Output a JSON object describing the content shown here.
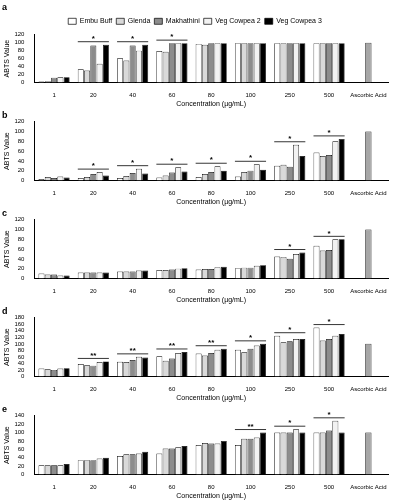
{
  "chart_data": [
    {
      "type": "bar",
      "title": "a",
      "x_label": "Concentration (µg/mL)",
      "y_label": "ABTS Value",
      "categories": [
        "1",
        "20",
        "40",
        "60",
        "80",
        "100",
        "250",
        "500",
        "Ascorbic Acid"
      ],
      "series": [
        {
          "name": "Embu Buff",
          "color": "#ffffff",
          "values": [
            2,
            33,
            61,
            79,
            97,
            99,
            99,
            99,
            null
          ]
        },
        {
          "name": "Glenda",
          "color": "#d9d9d9",
          "values": [
            3,
            30,
            55,
            77,
            95,
            99,
            99,
            99,
            null
          ]
        },
        {
          "name": "Makhathini",
          "color": "#8c8c8c",
          "values": [
            12,
            93,
            93,
            99,
            99,
            99,
            99,
            99,
            null
          ]
        },
        {
          "name": "Veg Cowpea 2",
          "color": "#f2f2f2",
          "values": [
            13,
            47,
            80,
            99,
            99,
            99,
            99,
            99,
            null
          ]
        },
        {
          "name": "Veg Cowpea 3",
          "color": "#000000",
          "values": [
            13,
            95,
            95,
            99,
            99,
            99,
            99,
            99,
            null
          ]
        }
      ],
      "reference": {
        "category": "Ascorbic Acid",
        "value": 100,
        "color": "#a6a6a6"
      },
      "annotations": [
        {
          "category": "20",
          "text": "*"
        },
        {
          "category": "40",
          "text": "*"
        },
        {
          "category": "60",
          "text": "*"
        }
      ],
      "ylim": [
        0,
        120
      ],
      "yticks": [
        0,
        20,
        40,
        60,
        80,
        100,
        120
      ],
      "grid": false,
      "legend": "top"
    },
    {
      "type": "bar",
      "title": "b",
      "x_label": "Concentration (µg/mL)",
      "y_label": "ABTS Value",
      "categories": [
        "1",
        "20",
        "40",
        "60",
        "80",
        "100",
        "250",
        "500",
        "Ascorbic Acid"
      ],
      "series": [
        {
          "name": "Embu Buff",
          "color": "#ffffff",
          "values": [
            3,
            5,
            5,
            6,
            7,
            8,
            30,
            57,
            null
          ]
        },
        {
          "name": "Glenda",
          "color": "#d9d9d9",
          "values": [
            7,
            7,
            9,
            10,
            13,
            17,
            32,
            50,
            null
          ]
        },
        {
          "name": "Makhathini",
          "color": "#8c8c8c",
          "values": [
            5,
            13,
            15,
            16,
            17,
            20,
            28,
            52,
            null
          ]
        },
        {
          "name": "Veg Cowpea 2",
          "color": "#f2f2f2",
          "values": [
            8,
            17,
            24,
            27,
            29,
            33,
            73,
            80,
            null
          ]
        },
        {
          "name": "Veg Cowpea 3",
          "color": "#000000",
          "values": [
            6,
            10,
            14,
            18,
            20,
            22,
            50,
            85,
            null
          ]
        }
      ],
      "reference": {
        "category": "Ascorbic Acid",
        "value": 100,
        "color": "#a6a6a6"
      },
      "annotations": [
        {
          "category": "20",
          "text": "*"
        },
        {
          "category": "40",
          "text": "*"
        },
        {
          "category": "60",
          "text": "*"
        },
        {
          "category": "80",
          "text": "*"
        },
        {
          "category": "100",
          "text": "*"
        },
        {
          "category": "250",
          "text": "*"
        },
        {
          "category": "500",
          "text": "*"
        }
      ],
      "ylim": [
        0,
        120
      ],
      "yticks": [
        0,
        20,
        40,
        60,
        80,
        100,
        120
      ],
      "grid": false
    },
    {
      "type": "bar",
      "title": "c",
      "x_label": "Concentration (µg/mL)",
      "y_label": "ABTS Value",
      "categories": [
        "1",
        "20",
        "40",
        "60",
        "80",
        "100",
        "250",
        "500",
        "Ascorbic Acid"
      ],
      "series": [
        {
          "name": "Embu Buff",
          "color": "#ffffff",
          "values": [
            10,
            12,
            14,
            17,
            18,
            21,
            45,
            67,
            null
          ]
        },
        {
          "name": "Glenda",
          "color": "#d9d9d9",
          "values": [
            8,
            12,
            14,
            17,
            19,
            22,
            44,
            57,
            null
          ]
        },
        {
          "name": "Makhathini",
          "color": "#8c8c8c",
          "values": [
            8,
            12,
            14,
            18,
            19,
            22,
            40,
            58,
            null
          ]
        },
        {
          "name": "Veg Cowpea 2",
          "color": "#f2f2f2",
          "values": [
            6,
            12,
            16,
            20,
            23,
            26,
            50,
            80,
            null
          ]
        },
        {
          "name": "Veg Cowpea 3",
          "color": "#000000",
          "values": [
            6,
            12,
            16,
            21,
            24,
            27,
            53,
            80,
            null
          ]
        }
      ],
      "reference": {
        "category": "Ascorbic Acid",
        "value": 100,
        "color": "#a6a6a6"
      },
      "annotations": [
        {
          "category": "250",
          "text": "*"
        },
        {
          "category": "500",
          "text": "*"
        }
      ],
      "ylim": [
        0,
        120
      ],
      "yticks": [
        0,
        20,
        40,
        60,
        80,
        100,
        120
      ],
      "grid": false
    },
    {
      "type": "bar",
      "title": "d",
      "x_label": "Concentration (µg/mL)",
      "y_label": "ABTS Value",
      "categories": [
        "1",
        "20",
        "40",
        "60",
        "80",
        "100",
        "250",
        "500",
        "Ascorbic Acid"
      ],
      "series": [
        {
          "name": "Embu Buff",
          "color": "#ffffff",
          "values": [
            24,
            38,
            45,
            62,
            70,
            82,
            125,
            150,
            null
          ]
        },
        {
          "name": "Glenda",
          "color": "#d9d9d9",
          "values": [
            22,
            34,
            44,
            48,
            64,
            74,
            105,
            110,
            null
          ]
        },
        {
          "name": "Makhathini",
          "color": "#8c8c8c",
          "values": [
            20,
            33,
            50,
            55,
            72,
            85,
            108,
            115,
            null
          ]
        },
        {
          "name": "Veg Cowpea 2",
          "color": "#f2f2f2",
          "values": [
            24,
            44,
            60,
            72,
            82,
            95,
            115,
            125,
            null
          ]
        },
        {
          "name": "Veg Cowpea 3",
          "color": "#000000",
          "values": [
            25,
            46,
            58,
            75,
            85,
            100,
            115,
            130,
            null
          ]
        }
      ],
      "reference": {
        "category": "Ascorbic Acid",
        "value": 100,
        "color": "#a6a6a6"
      },
      "annotations": [
        {
          "category": "20",
          "text": "**"
        },
        {
          "category": "40",
          "text": "**"
        },
        {
          "category": "60",
          "text": "**"
        },
        {
          "category": "80",
          "text": "**"
        },
        {
          "category": "100",
          "text": "*"
        },
        {
          "category": "250",
          "text": "*"
        },
        {
          "category": "500",
          "text": "*"
        }
      ],
      "ylim": [
        0,
        180
      ],
      "yticks": [
        0,
        20,
        40,
        60,
        80,
        100,
        120,
        140,
        160,
        180
      ],
      "grid": false
    },
    {
      "type": "bar",
      "title": "e",
      "x_label": "Concentration (µg/mL)",
      "y_label": "ABTS Value",
      "categories": [
        "1",
        "20",
        "40",
        "60",
        "80",
        "100",
        "250",
        "500",
        "Ascorbic Acid"
      ],
      "series": [
        {
          "name": "Embu Buff",
          "color": "#ffffff",
          "values": [
            22,
            34,
            44,
            50,
            70,
            70,
            100,
            100,
            null
          ]
        },
        {
          "name": "Glenda",
          "color": "#d9d9d9",
          "values": [
            22,
            34,
            48,
            62,
            75,
            85,
            100,
            100,
            null
          ]
        },
        {
          "name": "Makhathini",
          "color": "#8c8c8c",
          "values": [
            22,
            34,
            48,
            62,
            74,
            85,
            100,
            105,
            null
          ]
        },
        {
          "name": "Veg Cowpea 2",
          "color": "#f2f2f2",
          "values": [
            22,
            38,
            50,
            65,
            74,
            88,
            108,
            128,
            null
          ]
        },
        {
          "name": "Veg Cowpea 3",
          "color": "#000000",
          "values": [
            25,
            40,
            54,
            68,
            80,
            100,
            100,
            100,
            null
          ]
        }
      ],
      "reference": {
        "category": "Ascorbic Acid",
        "value": 100,
        "color": "#a6a6a6"
      },
      "annotations": [
        {
          "category": "100",
          "text": "**"
        },
        {
          "category": "250",
          "text": "*"
        },
        {
          "category": "500",
          "text": "*"
        }
      ],
      "ylim": [
        0,
        140
      ],
      "yticks": [
        0,
        20,
        40,
        60,
        80,
        100,
        120,
        140
      ],
      "grid": false
    }
  ]
}
